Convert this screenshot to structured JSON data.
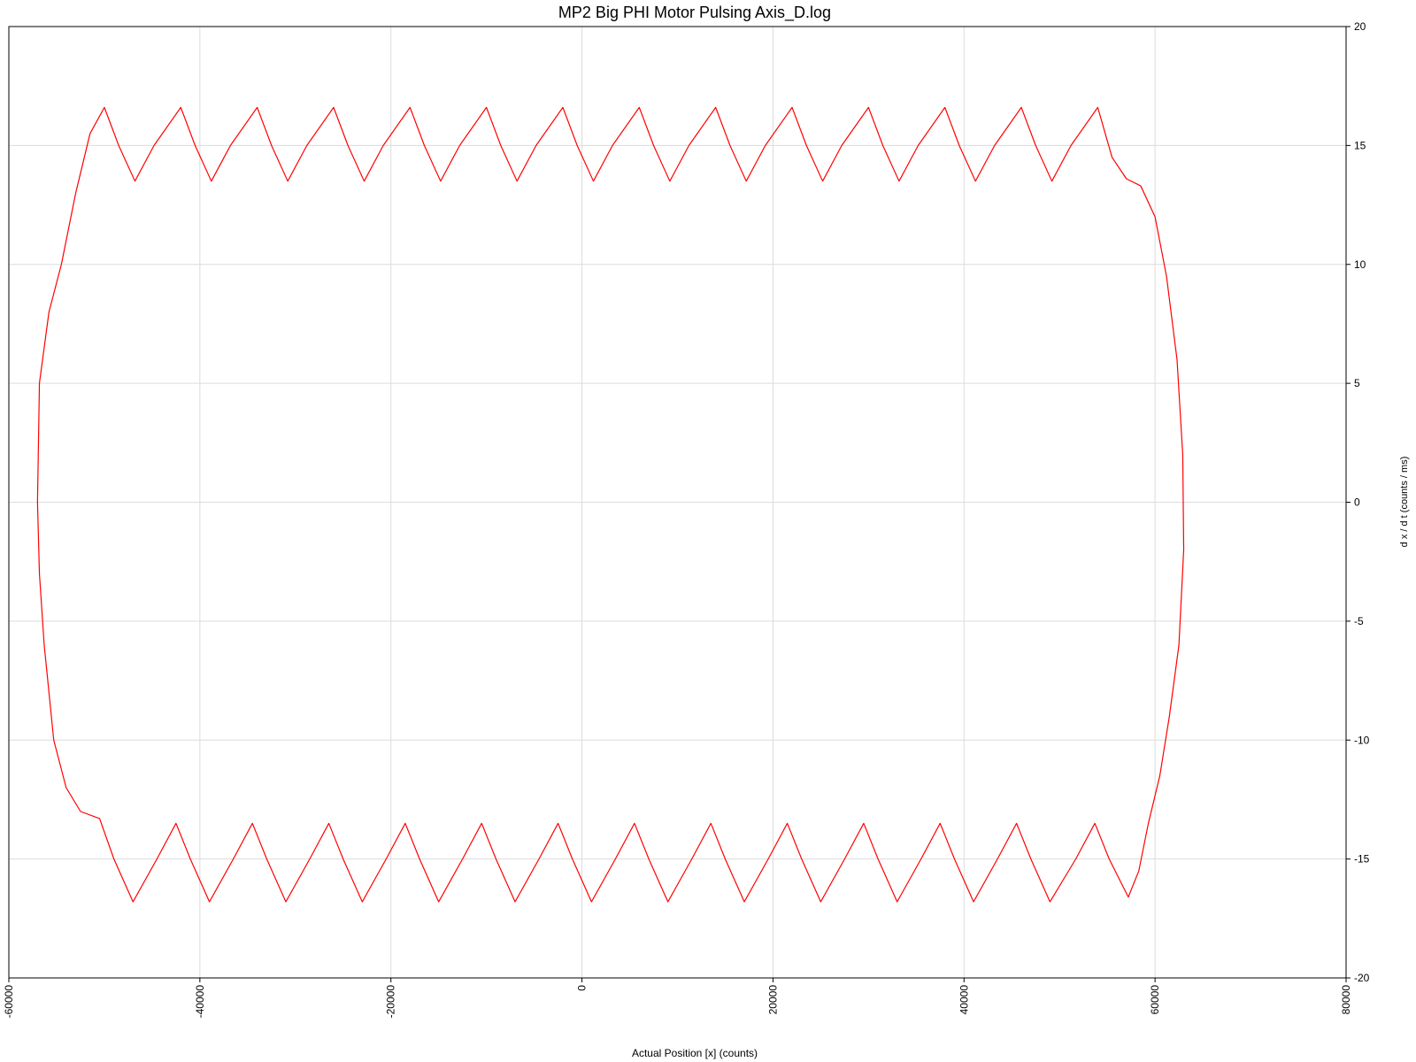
{
  "chart_data": {
    "type": "line",
    "title": "MP2 Big PHI Motor Pulsing Axis_D.log",
    "xlabel": "Actual Position [x] (counts)",
    "ylabel": "d x / d t (counts / ms)",
    "x": [
      -57000,
      -56800,
      -55800,
      -54500,
      -53000,
      -51500,
      -50000,
      -48500,
      -46800,
      -44800,
      -42000,
      -40500,
      -38800,
      -36800,
      -34000,
      -32500,
      -30800,
      -28800,
      -26000,
      -24500,
      -22800,
      -20800,
      -18000,
      -16500,
      -14800,
      -12800,
      -10000,
      -8500,
      -6800,
      -4800,
      -2000,
      -500,
      1200,
      3200,
      6000,
      7500,
      9200,
      11200,
      14000,
      15500,
      17200,
      19200,
      22000,
      23500,
      25200,
      27200,
      30000,
      31500,
      33200,
      35200,
      38000,
      39500,
      41200,
      43200,
      46000,
      47500,
      49200,
      51200,
      54000,
      55500,
      57000,
      58500,
      60000,
      61200,
      62300,
      62900,
      63000,
      62500,
      61500,
      60500,
      59300,
      58300,
      57200,
      55200,
      53700,
      51700,
      49000,
      47000,
      45500,
      43500,
      41000,
      39000,
      37500,
      35500,
      33000,
      31000,
      29500,
      27500,
      25000,
      23000,
      21500,
      19500,
      17000,
      15000,
      13500,
      11500,
      9000,
      7000,
      5500,
      3500,
      1000,
      -1000,
      -2500,
      -4500,
      -7000,
      -9000,
      -10500,
      -12500,
      -15000,
      -17000,
      -18500,
      -20500,
      -23000,
      -25000,
      -26500,
      -28500,
      -31000,
      -33000,
      -34500,
      -36500,
      -39000,
      -41000,
      -42500,
      -44500,
      -47000,
      -49000,
      -50500,
      -52500,
      -54000,
      -55300,
      -56300,
      -56800,
      -57000
    ],
    "series": [
      {
        "color": "#ff0000",
        "values": [
          0,
          5,
          8,
          10,
          13,
          15.5,
          16.6,
          15,
          13.5,
          15,
          16.6,
          15,
          13.5,
          15,
          16.6,
          15,
          13.5,
          15,
          16.6,
          15,
          13.5,
          15,
          16.6,
          15,
          13.5,
          15,
          16.6,
          15,
          13.5,
          15,
          16.6,
          15,
          13.5,
          15,
          16.6,
          15,
          13.5,
          15,
          16.6,
          15,
          13.5,
          15,
          16.6,
          15,
          13.5,
          15,
          16.6,
          15,
          13.5,
          15,
          16.6,
          15,
          13.5,
          15,
          16.6,
          15,
          13.5,
          15,
          16.6,
          14.5,
          13.6,
          13.3,
          12,
          9.5,
          6,
          2,
          -2,
          -6,
          -9,
          -11.5,
          -13.5,
          -15.5,
          -16.6,
          -15,
          -13.5,
          -15,
          -16.8,
          -15,
          -13.5,
          -15,
          -16.8,
          -15,
          -13.5,
          -15,
          -16.8,
          -15,
          -13.5,
          -15,
          -16.8,
          -15,
          -13.5,
          -15,
          -16.8,
          -15,
          -13.5,
          -15,
          -16.8,
          -15,
          -13.5,
          -15,
          -16.8,
          -15,
          -13.5,
          -15,
          -16.8,
          -15,
          -13.5,
          -15,
          -16.8,
          -15,
          -13.5,
          -15,
          -16.8,
          -15,
          -13.5,
          -15,
          -16.8,
          -15,
          -13.5,
          -15,
          -16.8,
          -15,
          -13.5,
          -15,
          -16.8,
          -15,
          -13.3,
          -13,
          -12,
          -10,
          -6,
          -3,
          0
        ]
      }
    ],
    "xlim": [
      -60000,
      80000
    ],
    "ylim": [
      -20,
      20
    ],
    "xticks": [
      -60000,
      -40000,
      -20000,
      0,
      20000,
      40000,
      60000,
      80000
    ],
    "yticks": [
      20,
      15,
      10,
      5,
      0,
      -5,
      -10,
      -15,
      -20
    ],
    "grid": true,
    "yaxis_side": "right"
  }
}
